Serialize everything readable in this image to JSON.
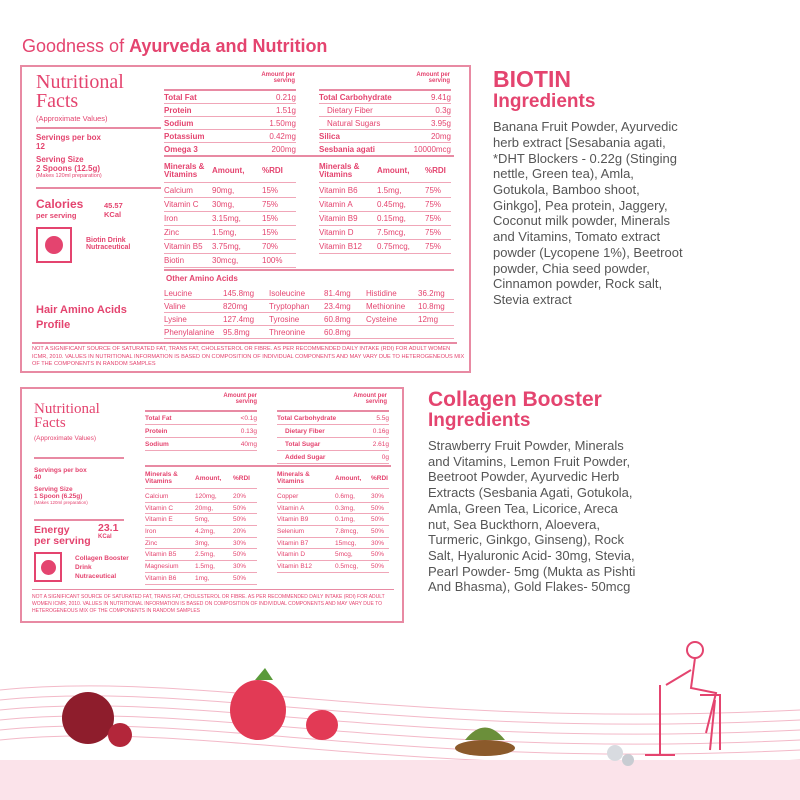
{
  "page": {
    "title_light": "Goodness of ",
    "title_bold": "Ayurveda and Nutrition"
  },
  "biotin": {
    "nf_title1": "Nutritional",
    "nf_title2": "Facts",
    "approx": "(Approximate Values)",
    "servings_label": "Servings per box",
    "servings": "12",
    "size_label": "Serving Size",
    "size": "2 Spoons (12.5g)",
    "makes": "(Makes 120ml preparation)",
    "cal_label": "Calories",
    "cal_sub": "per serving",
    "cal_value": "45.57",
    "cal_unit": "KCal",
    "product": "Biotin Drink Nutraceutical",
    "amino_title": "Hair Amino Acids Profile",
    "amount_hdr": "Amount per serving",
    "macros_left": [
      [
        "Total Fat",
        "0.21g"
      ],
      [
        "Protein",
        "1.51g"
      ],
      [
        "Sodium",
        "1.50mg"
      ],
      [
        "Potassium",
        "0.42mg"
      ],
      [
        "Omega 3",
        "200mg"
      ]
    ],
    "macros_right": [
      [
        "Total Carbohydrate",
        "9.41g"
      ],
      [
        "Dietary Fiber",
        "0.3g"
      ],
      [
        "Natural Sugars",
        "3.95g"
      ],
      [
        "Silica",
        "20mg"
      ],
      [
        "Sesbania agati",
        "10000mcg"
      ]
    ],
    "min_hdr": [
      "Minerals & Vitamins",
      "Amount,",
      "%RDI"
    ],
    "min_left": [
      [
        "Calcium",
        "90mg,",
        "15%"
      ],
      [
        "Vitamin C",
        "30mg,",
        "75%"
      ],
      [
        "Iron",
        "3.15mg,",
        "15%"
      ],
      [
        "Zinc",
        "1.5mg,",
        "15%"
      ],
      [
        "Vitamin B5",
        "3.75mg,",
        "70%"
      ],
      [
        "Biotin",
        "30mcg,",
        "100%"
      ]
    ],
    "min_right": [
      [
        "Vitamin B6",
        "1.5mg,",
        "75%"
      ],
      [
        "Vitamin A",
        "0.45mg,",
        "75%"
      ],
      [
        "Vitamin B9",
        "0.15mg,",
        "75%"
      ],
      [
        "Vitamin D",
        "7.5mcg,",
        "75%"
      ],
      [
        "Vitamin B12",
        "0.75mcg,",
        "75%"
      ]
    ],
    "amino_hdr": "Other Amino Acids",
    "amino": [
      [
        "Leucine",
        "145.8mg",
        "Isoleucine",
        "81.4mg",
        "Histidine",
        "36.2mg"
      ],
      [
        "Valine",
        "820mg",
        "Tryptophan",
        "23.4mg",
        "Methionine",
        "10.8mg"
      ],
      [
        "Lysine",
        "127.4mg",
        "Tyrosine",
        "60.8mg",
        "Cysteine",
        "12mg"
      ],
      [
        "Phenylalanine",
        "95.8mg",
        "Threonine",
        "60.8mg",
        "",
        ""
      ]
    ],
    "footnote": "Not a significant source of saturated fat, trans fat, cholesterol or fibre. As per recommended daily intake (RDI) for adult women ICMR, 2010. Values in nutritional information is based on composition of individual components and may vary due to heterogeneous mix of the components in random samples"
  },
  "collagen": {
    "nf_title1": "Nutritional",
    "nf_title2": "Facts",
    "approx": "(Approximate Values)",
    "servings_label": "Servings per box",
    "servings": "40",
    "size_label": "Serving Size",
    "size": "1 Spoon (6.25g)",
    "makes": "(Makes 120ml preparation)",
    "cal_label": "Energy",
    "cal_sub": "per serving",
    "cal_value": "23.1",
    "cal_unit": "KCal",
    "product": "Collagen Booster Drink Nutraceutical",
    "amount_hdr": "Amount per serving",
    "macros_left": [
      [
        "Total Fat",
        "<0.1g"
      ],
      [
        "Protein",
        "0.13g"
      ],
      [
        "Sodium",
        "40mg"
      ]
    ],
    "macros_right": [
      [
        "Total Carbohydrate",
        "5.5g"
      ],
      [
        "Dietary Fiber",
        "0.16g"
      ],
      [
        "Total Sugar",
        "2.61g"
      ],
      [
        "Added Sugar",
        "0g"
      ]
    ],
    "min_hdr": [
      "Minerals & Vitamins",
      "Amount,",
      "%RDI"
    ],
    "min_left": [
      [
        "Calcium",
        "120mg,",
        "20%"
      ],
      [
        "Vitamin C",
        "20mg,",
        "50%"
      ],
      [
        "Vitamin E",
        "5mg,",
        "50%"
      ],
      [
        "Iron",
        "4.2mg,",
        "20%"
      ],
      [
        "Zinc",
        "3mg,",
        "30%"
      ],
      [
        "Vitamin B5",
        "2.5mg,",
        "50%"
      ],
      [
        "Magnesium",
        "1.5mg,",
        "30%"
      ],
      [
        "Vitamin B6",
        "1mg,",
        "50%"
      ]
    ],
    "min_right": [
      [
        "Copper",
        "0.6mg,",
        "30%"
      ],
      [
        "Vitamin A",
        "0.3mg,",
        "50%"
      ],
      [
        "Vitamin B9",
        "0.1mg,",
        "50%"
      ],
      [
        "Selenium",
        "7.8mcg,",
        "50%"
      ],
      [
        "Vitamin B7",
        "15mcg,",
        "30%"
      ],
      [
        "Vitamin D",
        "5mcg,",
        "50%"
      ],
      [
        "Vitamin B12",
        "0.5mcg,",
        "50%"
      ]
    ],
    "footnote": "Not a significant source of saturated fat, trans fat, cholesterol or fibre. As per recommended daily intake (RDI) for adult women ICMR, 2010. Values in nutritional information is based on composition of individual components and may vary due to heterogeneous mix of the components in random samples"
  },
  "ingredients": {
    "biotin_name": "BIOTIN",
    "biotin_sub": "Ingredients",
    "biotin_text": "Banana Fruit Powder, Ayurvedic herb extract [Sesabania agati, *DHT Blockers - 0.22g (Stinging nettle, Green tea), Amla, Gotukola, Bamboo shoot, Ginkgo], Pea protein, Jaggery, Coconut milk powder, Minerals and Vitamins, Tomato extract powder (Lycopene 1%), Beetroot powder, Chia seed powder, Cinnamon powder, Rock salt, Stevia extract",
    "collagen_name": "Collagen Booster",
    "collagen_sub": "Ingredients",
    "collagen_text": "Strawberry Fruit Powder, Minerals and Vitamins, Lemon Fruit Powder, Beetroot Powder, Ayurvedic Herb Extracts (Sesbania Agati, Gotukola, Amla, Green Tea, Licorice, Areca nut, Sea Buckthorn, Aloevera, Turmeric, Ginkgo, Ginseng), Rock Salt, Hyaluronic Acid- 30mg, Stevia, Pearl Powder- 5mg (Mukta as Pishti And Bhasma), Gold Flakes- 50mcg"
  },
  "colors": {
    "accent": "#e4446f",
    "border": "#e88aa3",
    "body_text": "#555555"
  }
}
